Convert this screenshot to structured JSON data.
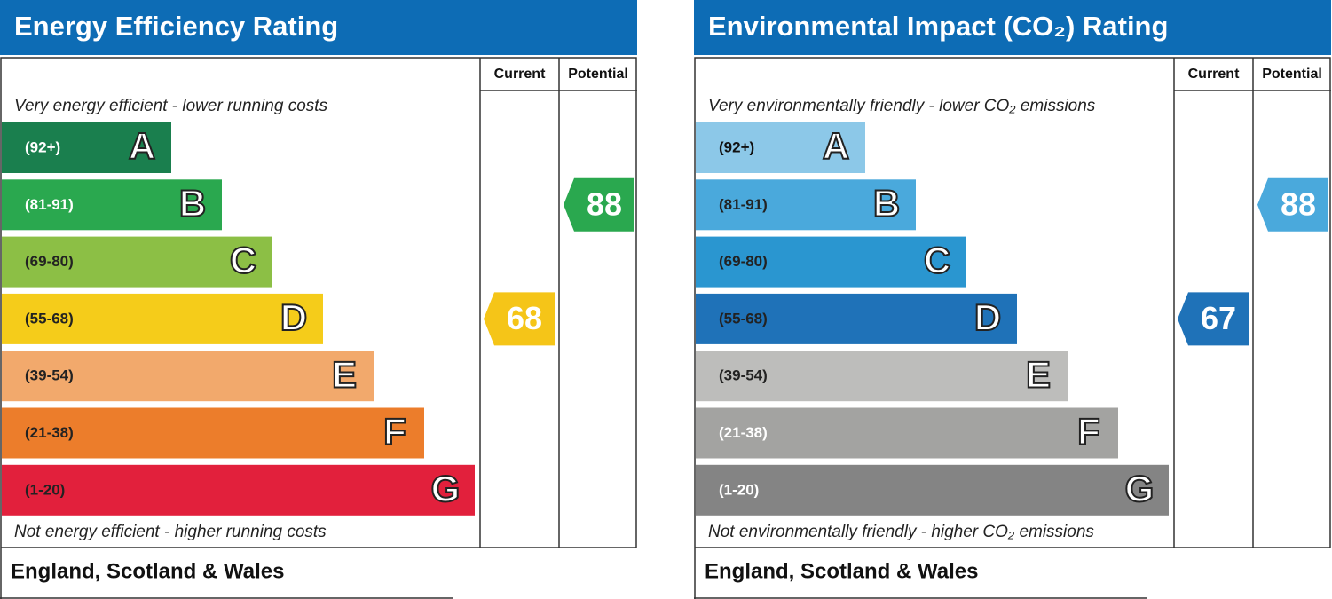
{
  "panels": [
    {
      "title": "Energy Efficiency Rating",
      "columns": [
        "Current",
        "Potential"
      ],
      "top_note": "Very energy efficient - lower running costs",
      "bottom_note": "Not energy efficient - higher running costs",
      "bands": [
        {
          "range": "(92+)",
          "letter": "A",
          "color": "#1a7f4e",
          "label_color": "#ffffff"
        },
        {
          "range": "(81-91)",
          "letter": "B",
          "color": "#2aa84f",
          "label_color": "#ffffff"
        },
        {
          "range": "(69-80)",
          "letter": "C",
          "color": "#8cbf45",
          "label_color": "#222222"
        },
        {
          "range": "(55-68)",
          "letter": "D",
          "color": "#f5cc1a",
          "label_color": "#222222"
        },
        {
          "range": "(39-54)",
          "letter": "E",
          "color": "#f2a96c",
          "label_color": "#222222"
        },
        {
          "range": "(21-38)",
          "letter": "F",
          "color": "#ec7d2b",
          "label_color": "#222222"
        },
        {
          "range": "(1-20)",
          "letter": "G",
          "color": "#e2203c",
          "label_color": "#222222"
        }
      ],
      "current": {
        "value": 68,
        "color": "#f5c518"
      },
      "potential": {
        "value": 88,
        "color": "#2aa84f"
      },
      "footer": "England, Scotland & Wales"
    },
    {
      "title": "Environmental Impact (CO₂) Rating",
      "columns": [
        "Current",
        "Potential"
      ],
      "top_note": "Very environmentally friendly - lower CO₂ emissions",
      "bottom_note": "Not environmentally friendly - higher CO₂ emissions",
      "bands": [
        {
          "range": "(92+)",
          "letter": "A",
          "color": "#8cc8e8",
          "label_color": "#111111"
        },
        {
          "range": "(81-91)",
          "letter": "B",
          "color": "#4aa9dc",
          "label_color": "#222222"
        },
        {
          "range": "(69-80)",
          "letter": "C",
          "color": "#2a96d0",
          "label_color": "#222222"
        },
        {
          "range": "(55-68)",
          "letter": "D",
          "color": "#1f72b8",
          "label_color": "#222222"
        },
        {
          "range": "(39-54)",
          "letter": "E",
          "color": "#bdbdbb",
          "label_color": "#222222"
        },
        {
          "range": "(21-38)",
          "letter": "F",
          "color": "#a3a3a1",
          "label_color": "#ffffff"
        },
        {
          "range": "(1-20)",
          "letter": "G",
          "color": "#848484",
          "label_color": "#ffffff"
        }
      ],
      "current": {
        "value": 67,
        "color": "#1f72b8"
      },
      "potential": {
        "value": 88,
        "color": "#4aa9dc"
      },
      "footer": "England, Scotland & Wales"
    }
  ]
}
